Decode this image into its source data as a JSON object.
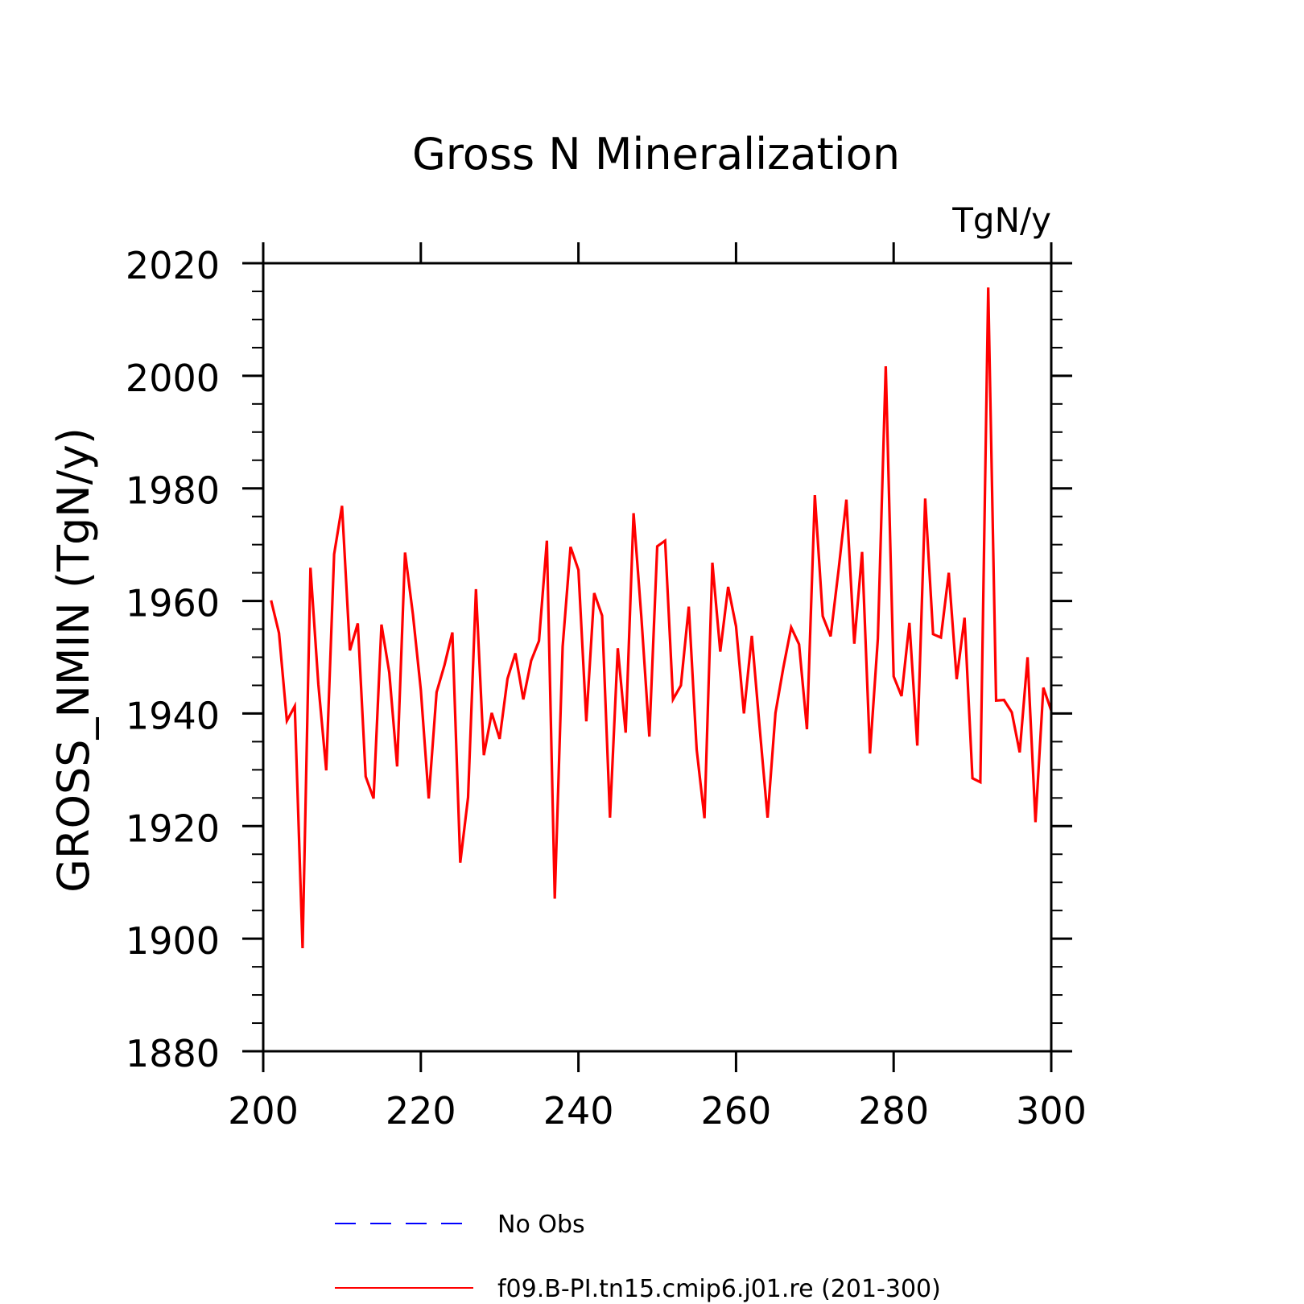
{
  "chart_data": {
    "type": "line",
    "title": "Gross N Mineralization",
    "units_label": "TgN/y",
    "ylabel": "GROSS_NMIN   (TgN/y)",
    "xlabel": "",
    "xlim": [
      200,
      300
    ],
    "ylim": [
      1880,
      2020
    ],
    "x_ticks": [
      200,
      220,
      240,
      260,
      280,
      300
    ],
    "x_tick_labels": [
      "200",
      "220",
      "240",
      "260",
      "280",
      "300"
    ],
    "y_ticks": [
      1880,
      1900,
      1920,
      1940,
      1960,
      1980,
      2000,
      2020
    ],
    "y_tick_labels": [
      "1880",
      "1900",
      "1920",
      "1940",
      "1960",
      "1980",
      "2000",
      "2020"
    ],
    "grid": false,
    "legend_position": "bottom",
    "x": [
      201,
      202,
      203,
      204,
      205,
      206,
      207,
      208,
      209,
      210,
      211,
      212,
      213,
      214,
      215,
      216,
      217,
      218,
      219,
      220,
      221,
      222,
      223,
      224,
      225,
      226,
      227,
      228,
      229,
      230,
      231,
      232,
      233,
      234,
      235,
      236,
      237,
      238,
      239,
      240,
      241,
      242,
      243,
      244,
      245,
      246,
      247,
      248,
      249,
      250,
      251,
      252,
      253,
      254,
      255,
      256,
      257,
      258,
      259,
      260,
      261,
      262,
      263,
      264,
      265,
      266,
      267,
      268,
      269,
      270,
      271,
      272,
      273,
      274,
      275,
      276,
      277,
      278,
      279,
      280,
      281,
      282,
      283,
      284,
      285,
      286,
      287,
      288,
      289,
      290,
      291,
      292,
      293,
      294,
      295,
      296,
      297,
      298,
      299,
      300
    ],
    "series": [
      {
        "name": "f09.B-PI.tn15.cmip6.j01.re (201-300)",
        "color": "#ff0000",
        "style": "solid",
        "values": [
          1960.1,
          1954.3,
          1938.7,
          1941.3,
          1898.3,
          1965.9,
          1945.2,
          1929.9,
          1968.3,
          1976.9,
          1951.2,
          1956.0,
          1928.8,
          1924.9,
          1955.8,
          1947.3,
          1930.6,
          1968.6,
          1957.6,
          1944.2,
          1924.9,
          1943.8,
          1948.6,
          1954.4,
          1913.5,
          1925.1,
          1962.1,
          1932.6,
          1940.1,
          1935.5,
          1946.2,
          1950.7,
          1942.5,
          1949.4,
          1952.9,
          1970.7,
          1907.1,
          1951.9,
          1969.6,
          1965.5,
          1938.6,
          1961.4,
          1957.4,
          1921.5,
          1951.6,
          1936.6,
          1975.6,
          1956.9,
          1935.9,
          1969.7,
          1970.7,
          1942.5,
          1945.0,
          1959.0,
          1933.6,
          1921.4,
          1966.8,
          1951.0,
          1962.5,
          1955.5,
          1940.0,
          1953.8,
          1937.4,
          1921.5,
          1940.1,
          1948.1,
          1955.3,
          1952.3,
          1937.2,
          1978.8,
          1957.3,
          1953.7,
          1965.4,
          1978.0,
          1952.4,
          1968.7,
          1932.9,
          1953.3,
          2001.7,
          1946.6,
          1943.1,
          1956.1,
          1934.3,
          1978.2,
          1954.1,
          1953.5,
          1965.0,
          1946.1,
          1957.0,
          1928.5,
          1927.8,
          2015.7,
          1942.3,
          1942.4,
          1940.2,
          1933.1,
          1950.0,
          1920.7,
          1944.6,
          1940.5
        ]
      }
    ]
  },
  "legend": [
    {
      "label": "No Obs",
      "color": "#0000ff",
      "style": "dashed"
    },
    {
      "label": "f09.B-PI.tn15.cmip6.j01.re (201-300)",
      "color": "#ff0000",
      "style": "solid"
    }
  ]
}
